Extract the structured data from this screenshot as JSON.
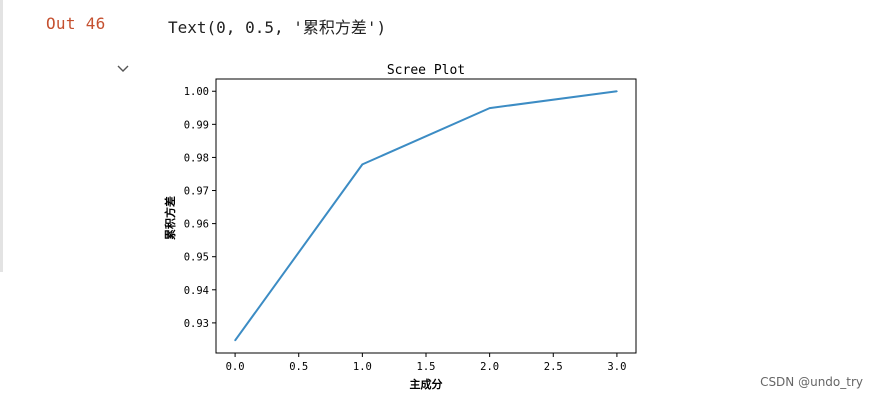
{
  "cell": {
    "out_label": "Out 46",
    "output_text": "Text(0, 0.5, '累积方差')",
    "collapse_icon": "chevron-down-icon"
  },
  "watermark": "CSDN @undo_try",
  "chart_data": {
    "type": "line",
    "title": "Scree Plot",
    "xlabel": "主成分",
    "ylabel": "累积方差",
    "x": [
      0,
      1,
      2,
      3
    ],
    "series": [
      {
        "values": [
          0.9247,
          0.9779,
          0.9949,
          1.0
        ],
        "color": "#3c8cc4"
      }
    ],
    "xticks": [
      "0.0",
      "0.5",
      "1.0",
      "1.5",
      "2.0",
      "2.5",
      "3.0"
    ],
    "xtick_values": [
      0,
      0.5,
      1.0,
      1.5,
      2.0,
      2.5,
      3.0
    ],
    "yticks": [
      "0.93",
      "0.94",
      "0.95",
      "0.96",
      "0.97",
      "0.98",
      "0.99",
      "1.00"
    ],
    "ytick_values": [
      0.93,
      0.94,
      0.95,
      0.96,
      0.97,
      0.98,
      0.99,
      1.0
    ],
    "xlim": [
      -0.15,
      3.15
    ],
    "ylim": [
      0.9209,
      1.0037
    ],
    "grid": false,
    "legend": "none"
  }
}
